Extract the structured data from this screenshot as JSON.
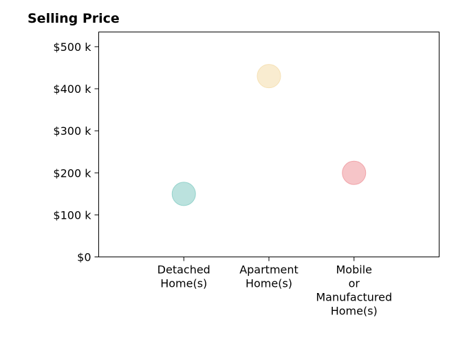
{
  "chart_data": {
    "type": "scatter",
    "title": "Selling Price",
    "xlabel": "",
    "ylabel": "",
    "categories": [
      [
        "Detached",
        "Home(s)"
      ],
      [
        "Apartment",
        "Home(s)"
      ],
      [
        "Mobile",
        "or",
        "Manufactured",
        "Home(s)"
      ]
    ],
    "values": [
      150000,
      430000,
      200000
    ],
    "colors": [
      "#8dcfc8",
      "#f5dfb0",
      "#f09ea4"
    ],
    "ylim": [
      0,
      535000
    ],
    "yticks": [
      {
        "value": 0,
        "label": "$0"
      },
      {
        "value": 100000,
        "label": "$100 k"
      },
      {
        "value": 200000,
        "label": "$200 k"
      },
      {
        "value": 300000,
        "label": "$300 k"
      },
      {
        "value": 400000,
        "label": "$400 k"
      },
      {
        "value": 500000,
        "label": "$500 k"
      }
    ],
    "grid": false,
    "legend": "none"
  }
}
